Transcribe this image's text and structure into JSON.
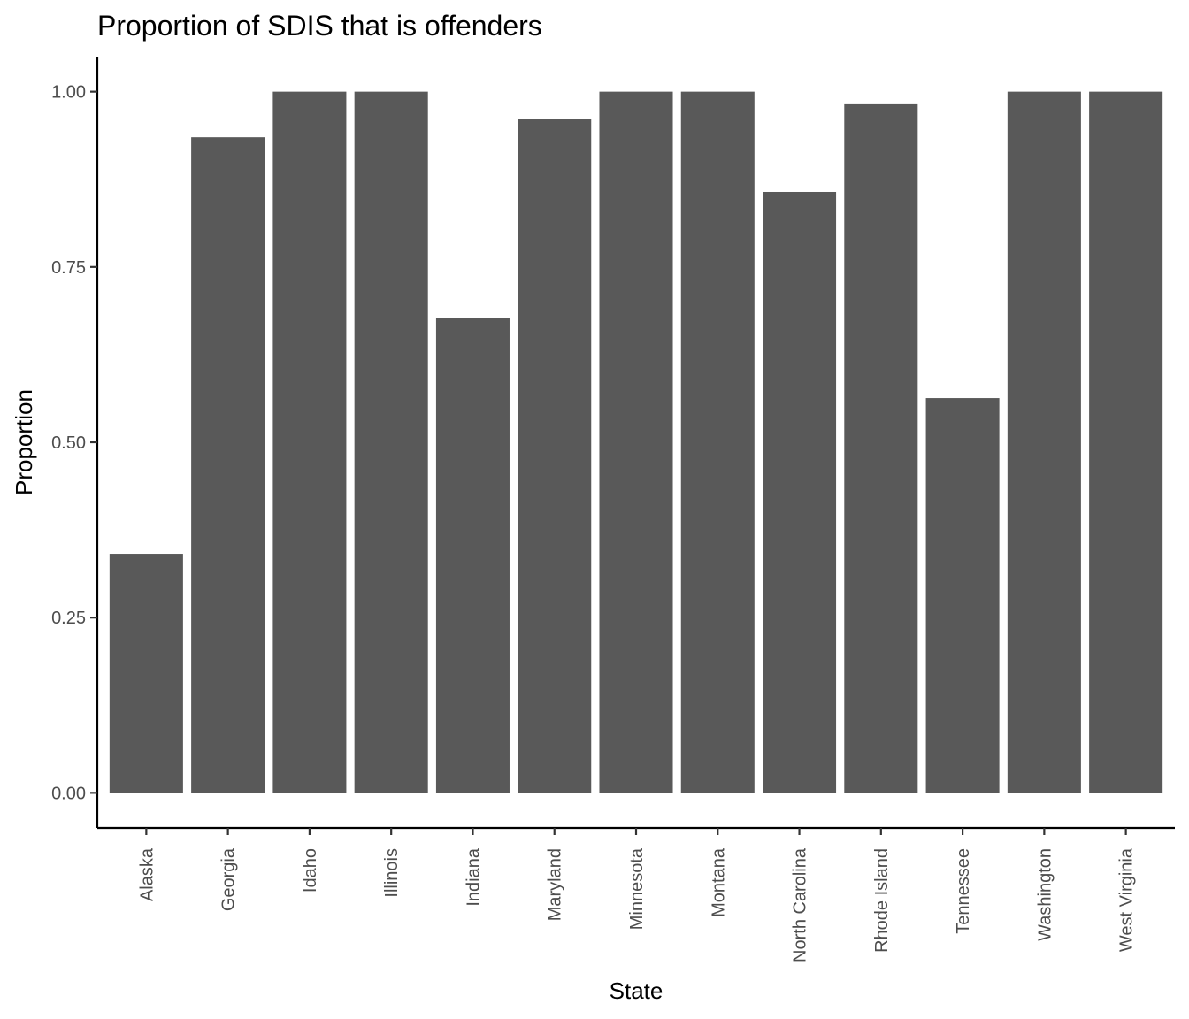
{
  "chart_data": {
    "type": "bar",
    "title": "Proportion of SDIS that is offenders",
    "xlabel": "State",
    "ylabel": "Proportion",
    "categories": [
      "Alaska",
      "Georgia",
      "Idaho",
      "Illinois",
      "Indiana",
      "Maryland",
      "Minnesota",
      "Montana",
      "North Carolina",
      "Rhode Island",
      "Tennessee",
      "Washington",
      "West Virginia"
    ],
    "values": [
      0.341,
      0.935,
      1.0,
      1.0,
      0.677,
      0.961,
      1.0,
      1.0,
      0.857,
      0.982,
      0.563,
      1.0,
      1.0
    ],
    "ylim": [
      -0.05,
      1.05
    ],
    "yticks": [
      0.0,
      0.25,
      0.5,
      0.75,
      1.0
    ],
    "ytick_labels": [
      "0.00",
      "0.25",
      "0.50",
      "0.75",
      "1.00"
    ],
    "bar_color": "#595959",
    "grid": false,
    "legend": "none"
  }
}
